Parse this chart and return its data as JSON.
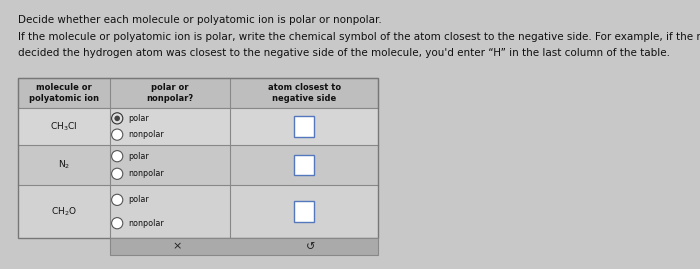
{
  "title_line1": "Decide whether each molecule or polyatomic ion is polar or nonpolar.",
  "title_line2": "If the molecule or polyatomic ion is polar, write the chemical symbol of the atom closest to the negative side. For example, if the molecule were HCl and you",
  "title_line3": "decided the hydrogen atom was closest to the negative side of the molecule, you'd enter “H” in the last column of the table.",
  "bg_color": "#c8c8c8",
  "header_bg": "#b8b8b8",
  "row1_bg": "#d8d8d8",
  "row2_bg": "#c8c8c8",
  "row3_bg": "#d0d0d0",
  "btn_bg": "#b0b0b0",
  "text_color": "#111111",
  "border_color": "#888888",
  "box_border_color": "#5577bb",
  "molecules": [
    "CH$_3$Cl",
    "N$_2$",
    "CH$_2$O"
  ],
  "col_headers": [
    "molecule or\npolyatomic ion",
    "polar or\nnonpolar?",
    "atom closest to\nnegative side"
  ],
  "row1_polar_filled": true,
  "title_fs": 7.5,
  "table_fs": 6.5
}
